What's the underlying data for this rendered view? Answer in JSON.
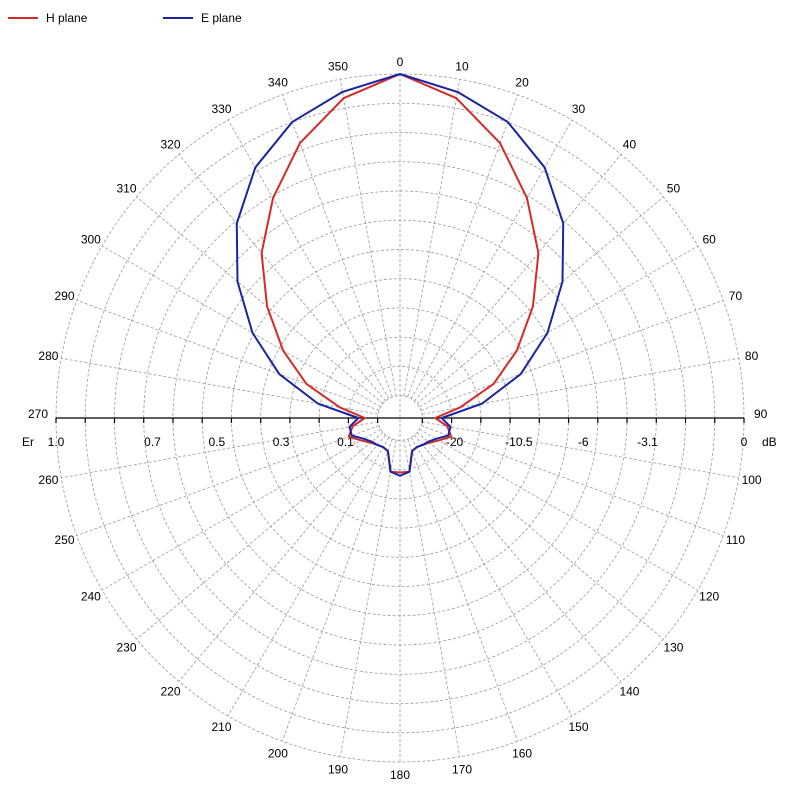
{
  "chart_data": {
    "type": "line",
    "polar": true,
    "angle_unit": "degrees",
    "angles": [
      0,
      10,
      20,
      30,
      40,
      50,
      60,
      70,
      80,
      90,
      100,
      110,
      120,
      130,
      140,
      150,
      160,
      170,
      180,
      190,
      200,
      210,
      220,
      230,
      240,
      250,
      260,
      270,
      280,
      290,
      300,
      310,
      320,
      330,
      340,
      350
    ],
    "angle_tick_labels": [
      "0",
      "10",
      "20",
      "30",
      "40",
      "50",
      "60",
      "70",
      "80",
      "90",
      "100",
      "110",
      "120",
      "130",
      "140",
      "150",
      "160",
      "170",
      "180",
      "190",
      "200",
      "210",
      "220",
      "230",
      "240",
      "250",
      "260",
      "270",
      "280",
      "290",
      "300",
      "310",
      "320",
      "330",
      "340",
      "350"
    ],
    "radial_range": [
      0,
      1
    ],
    "radial_rings": 11,
    "radial_left_label": "Er",
    "radial_left_ticks": [
      {
        "value": 1.0,
        "label": "1.0"
      },
      {
        "value": 0.7,
        "label": "0.7"
      },
      {
        "value": 0.5,
        "label": "0.5"
      },
      {
        "value": 0.3,
        "label": "0.3"
      },
      {
        "value": 0.1,
        "label": "0.1"
      }
    ],
    "radial_right_label": "dB",
    "radial_right_ticks": [
      {
        "value": 0.1,
        "label": "-20"
      },
      {
        "value": 0.3,
        "label": "-10.5"
      },
      {
        "value": 0.5,
        "label": "-6"
      },
      {
        "value": 0.7,
        "label": "-3.1"
      },
      {
        "value": 1.0,
        "label": "0"
      }
    ],
    "grid": true,
    "legend_position": "top-left",
    "series": [
      {
        "name": "H plane",
        "color": "#d42a2a",
        "values": [
          1.0,
          0.94,
          0.84,
          0.72,
          0.6,
          0.47,
          0.35,
          0.24,
          0.12,
          0.04,
          0.08,
          0.1,
          0.07,
          0.05,
          0.04,
          0.035,
          0.04,
          0.1,
          0.1,
          0.1,
          0.04,
          0.035,
          0.04,
          0.05,
          0.07,
          0.1,
          0.08,
          0.04,
          0.12,
          0.24,
          0.35,
          0.47,
          0.6,
          0.72,
          0.84,
          0.94
        ]
      },
      {
        "name": "E plane",
        "color": "#1a24a0",
        "values": [
          1.0,
          0.96,
          0.91,
          0.83,
          0.72,
          0.59,
          0.46,
          0.33,
          0.19,
          0.06,
          0.09,
          0.09,
          0.06,
          0.045,
          0.04,
          0.035,
          0.04,
          0.1,
          0.11,
          0.1,
          0.04,
          0.035,
          0.04,
          0.045,
          0.06,
          0.09,
          0.09,
          0.06,
          0.19,
          0.33,
          0.46,
          0.59,
          0.72,
          0.83,
          0.91,
          0.96
        ]
      }
    ]
  }
}
